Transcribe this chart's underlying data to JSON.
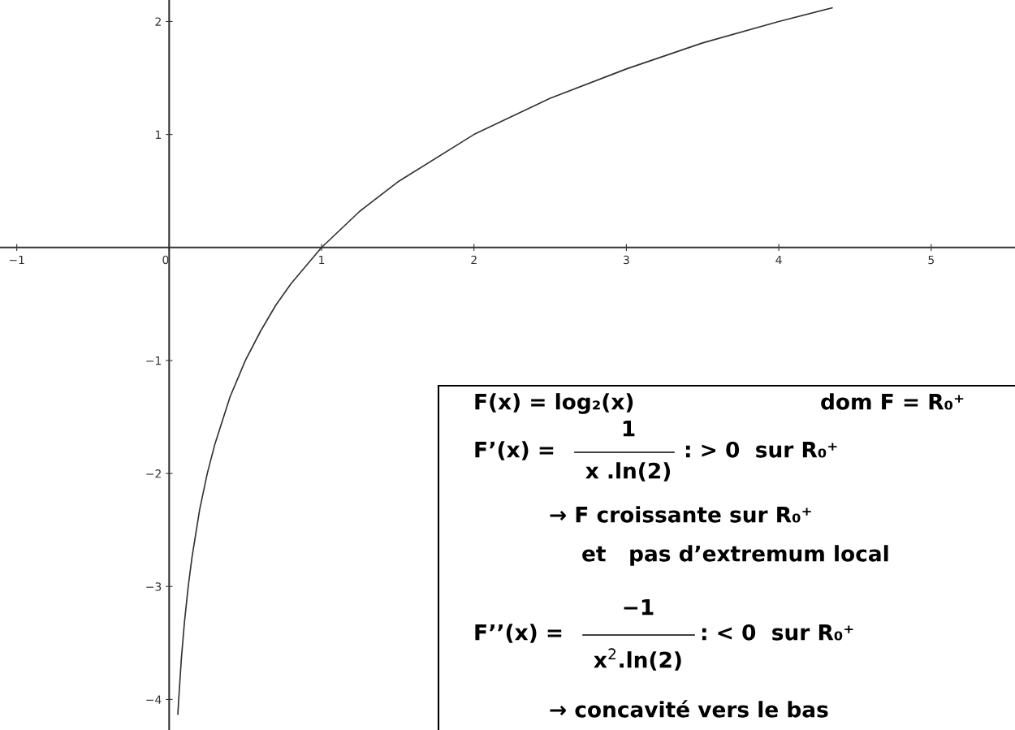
{
  "chart_data": {
    "type": "line",
    "xlim": [
      -1.11,
      5.55
    ],
    "ylim": [
      -4.27,
      2.19
    ],
    "xticks": [
      {
        "value": -1,
        "label": "−1"
      },
      0,
      1,
      2,
      3,
      4,
      5
    ],
    "yticks": [
      {
        "value": -4,
        "label": "−4"
      },
      {
        "value": -3,
        "label": "−3"
      },
      {
        "value": -2,
        "label": "−2"
      },
      {
        "value": -1,
        "label": "−1"
      },
      1,
      2
    ],
    "grid": false,
    "legend": false,
    "marker": "none",
    "line_style": "solid",
    "series": [
      {
        "color": "#333333",
        "x": [
          0.057,
          0.0625,
          0.08,
          0.1,
          0.125,
          0.15,
          0.2,
          0.25,
          0.3,
          0.4,
          0.5,
          0.6,
          0.7,
          0.8,
          1,
          1.25,
          1.5,
          2,
          2.5,
          3,
          3.5,
          4,
          4.35
        ],
        "values": [
          -4.13,
          -4,
          -3.64,
          -3.32,
          -3,
          -2.74,
          -2.32,
          -2,
          -1.74,
          -1.32,
          -1,
          -0.74,
          -0.51,
          -0.32,
          0,
          0.32,
          0.58,
          1,
          1.32,
          1.58,
          1.81,
          2,
          2.12
        ]
      }
    ],
    "annotations": [
      "F(x) = log₂(x)",
      "dom F = R₀⁺",
      "F’(x) =",
      "1",
      "x .ln(2)",
      ": > 0  sur R₀⁺",
      "→ F croissante sur R₀⁺",
      "et   pas d’extremum local",
      "F’’(x) =",
      "−1",
      "x$^{2}$.ln(2)",
      ": < 0  sur R₀⁺",
      "→ concavité vers le bas"
    ]
  }
}
